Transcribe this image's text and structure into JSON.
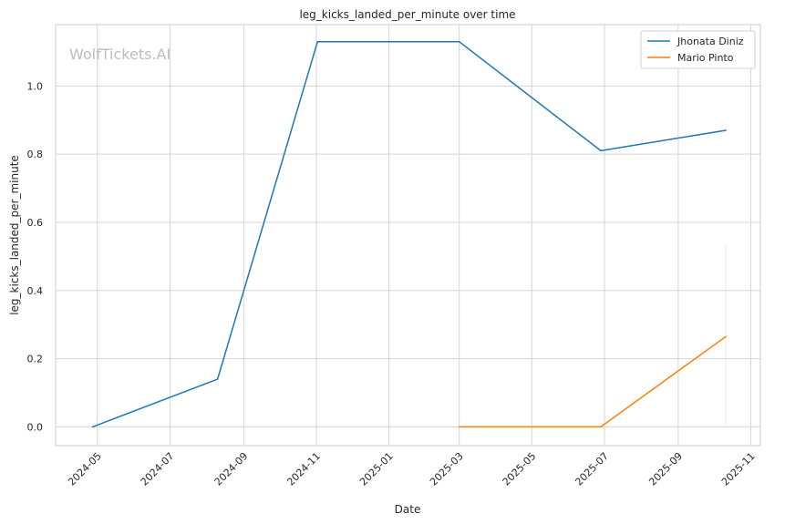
{
  "chart_data": {
    "type": "line",
    "title": "leg_kicks_landed_per_minute over time",
    "xlabel": "Date",
    "ylabel": "leg_kicks_landed_per_minute",
    "watermark": "WolfTickets.AI",
    "x_ticks": [
      "2024-05",
      "2024-07",
      "2024-09",
      "2024-11",
      "2025-01",
      "2025-03",
      "2025-05",
      "2025-07",
      "2025-09",
      "2025-11"
    ],
    "y_ticks": [
      "0.0",
      "0.2",
      "0.4",
      "0.6",
      "0.8",
      "1.0"
    ],
    "xlim": [
      "2024-03-27",
      "2025-11-09"
    ],
    "ylim": [
      -0.055,
      1.18
    ],
    "grid": true,
    "legend_position": "top-right",
    "series": [
      {
        "name": "Jhonata Diniz",
        "color": "#1f77b4",
        "points": [
          {
            "x": "2024-04-27",
            "y": 0.0
          },
          {
            "x": "2024-08-10",
            "y": 0.14
          },
          {
            "x": "2024-11-02",
            "y": 1.13
          },
          {
            "x": "2025-03-01",
            "y": 1.13
          },
          {
            "x": "2025-06-28",
            "y": 0.81
          },
          {
            "x": "2025-10-11",
            "y": 0.87
          }
        ]
      },
      {
        "name": "Mario Pinto",
        "color": "#ff7f0e",
        "points": [
          {
            "x": "2025-03-01",
            "y": 0.0
          },
          {
            "x": "2025-06-28",
            "y": 0.0
          },
          {
            "x": "2025-10-11",
            "y": 0.265
          }
        ],
        "error_band": {
          "x": "2025-10-11",
          "low": 0.0,
          "high": 0.53
        }
      }
    ]
  }
}
